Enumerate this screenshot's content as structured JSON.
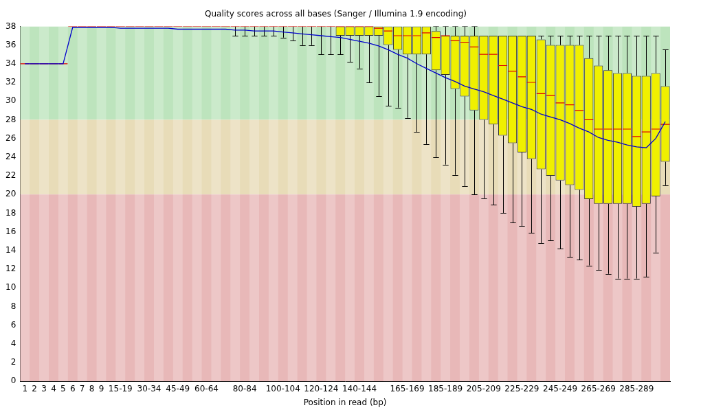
{
  "chart_data": {
    "type": "boxplot",
    "title": "Quality scores across all bases (Sanger / Illumina 1.9 encoding)",
    "x_label": "Position in read (bp)",
    "categories": [
      "1",
      "2",
      "3",
      "4",
      "5",
      "6",
      "7",
      "8",
      "9",
      null,
      "15-19",
      null,
      null,
      "30-34",
      null,
      null,
      "45-49",
      null,
      null,
      "60-64",
      null,
      null,
      null,
      "80-84",
      null,
      null,
      null,
      "100-104",
      null,
      null,
      null,
      "120-124",
      null,
      null,
      null,
      "140-144",
      null,
      null,
      null,
      null,
      "165-169",
      null,
      null,
      null,
      "185-189",
      null,
      null,
      null,
      "205-209",
      null,
      null,
      null,
      "225-229",
      null,
      null,
      null,
      "245-249",
      null,
      null,
      null,
      "265-269",
      null,
      null,
      null,
      "285-289",
      null,
      null,
      null
    ],
    "ylim": [
      0,
      38
    ],
    "yticks": [
      0,
      2,
      4,
      6,
      8,
      10,
      12,
      14,
      16,
      18,
      20,
      22,
      24,
      26,
      28,
      30,
      32,
      34,
      36,
      38
    ],
    "grid": false,
    "bands": [
      {
        "from": 28,
        "to": 38,
        "color": "#bde4bd"
      },
      {
        "from": 20,
        "to": 28,
        "color": "#e8dcb8"
      },
      {
        "from": 0,
        "to": 20,
        "color": "#e8b8b8"
      }
    ],
    "series": [
      {
        "type": "box",
        "color": "#f0f000",
        "whisker_low": [
          34,
          34,
          34,
          34,
          34,
          38,
          38,
          38,
          38,
          38,
          38,
          38,
          38,
          38,
          38,
          38,
          38,
          38,
          38,
          38,
          38,
          38,
          37,
          37,
          37,
          37,
          37,
          36.8,
          36.5,
          36,
          36,
          35,
          35,
          35,
          34.2,
          33.5,
          32,
          30.5,
          29.5,
          29.3,
          28.2,
          26.7,
          25.4,
          24,
          23.2,
          22.1,
          20.9,
          20,
          19.6,
          18.9,
          18,
          17,
          16.6,
          15.9,
          14.8,
          15.1,
          14.2,
          13.3,
          13,
          12.4,
          11.9,
          11.5,
          11,
          11,
          11,
          11.2,
          13.8,
          21
        ],
        "q1": [
          34,
          34,
          34,
          34,
          34,
          38,
          38,
          38,
          38,
          38,
          38,
          38,
          38,
          38,
          38,
          38,
          38,
          38,
          38,
          38,
          38,
          38,
          38,
          38,
          38,
          38,
          38,
          38,
          38,
          38,
          38,
          38,
          38,
          37,
          37,
          37,
          37,
          37,
          36,
          35.5,
          35,
          35,
          35,
          33.3,
          32.8,
          31.3,
          30.5,
          29,
          28,
          27.5,
          26.3,
          25.5,
          24.5,
          23.8,
          22.7,
          22,
          21.5,
          21,
          20.5,
          19.5,
          19,
          19,
          19,
          19,
          18.7,
          19,
          19.8,
          23.5
        ],
        "q3": [
          34,
          34,
          34,
          34,
          34,
          38,
          38,
          38,
          38,
          38,
          38,
          38,
          38,
          38,
          38,
          38,
          38,
          38,
          38,
          38,
          38,
          38,
          38,
          38,
          38,
          38,
          38,
          38,
          38,
          38,
          38,
          38,
          38,
          38,
          38,
          38,
          38,
          38,
          38,
          38,
          38,
          38,
          38,
          37.5,
          37,
          37,
          37,
          37,
          37,
          37,
          37,
          37,
          37,
          37,
          36.6,
          36,
          36,
          36,
          36,
          34.6,
          33.8,
          33.3,
          33,
          33,
          32.7,
          32.7,
          33,
          31.6
        ],
        "whisker_high": [
          34,
          34,
          34,
          34,
          34,
          38,
          38,
          38,
          38,
          38,
          38,
          38,
          38,
          38,
          38,
          38,
          38,
          38,
          38,
          38,
          38,
          38,
          38,
          38,
          38,
          38,
          38,
          38,
          38,
          38,
          38,
          38,
          38,
          38,
          38,
          38,
          38,
          38,
          38,
          38,
          38,
          38,
          38,
          38,
          38,
          38,
          38,
          38,
          37,
          37,
          37,
          37,
          37,
          37,
          37,
          37,
          37,
          37,
          37,
          37,
          37,
          37,
          37,
          37,
          37,
          37,
          37,
          35.5
        ]
      },
      {
        "type": "median",
        "color": "#dd0000",
        "marker": "dash",
        "values": [
          34,
          34,
          34,
          34,
          34,
          38,
          38,
          38,
          38,
          38,
          38,
          38,
          38,
          38,
          38,
          38,
          38,
          38,
          38,
          38,
          38,
          38,
          38,
          38,
          38,
          38,
          38,
          38,
          38,
          38,
          38,
          38,
          38,
          38,
          38,
          38,
          38,
          37.8,
          37.5,
          37,
          37,
          37,
          37.3,
          36.8,
          37,
          36.5,
          36.3,
          35.8,
          35,
          35,
          33.8,
          33.2,
          32.6,
          32,
          30.8,
          30.6,
          29.8,
          29.6,
          29,
          28,
          27,
          27,
          27,
          27,
          26.2,
          26.7,
          27,
          27.5
        ]
      },
      {
        "type": "line",
        "color": "#0000cc",
        "line_style": "solid",
        "values": [
          34,
          34,
          34,
          34,
          34,
          37.9,
          37.9,
          37.9,
          37.9,
          37.9,
          37.8,
          37.8,
          37.8,
          37.8,
          37.8,
          37.8,
          37.7,
          37.7,
          37.7,
          37.7,
          37.7,
          37.7,
          37.6,
          37.6,
          37.5,
          37.5,
          37.5,
          37.4,
          37.3,
          37.2,
          37.1,
          37,
          36.9,
          36.8,
          36.6,
          36.4,
          36.2,
          35.9,
          35.5,
          35,
          34.6,
          34,
          33.5,
          33,
          32.5,
          32.1,
          31.6,
          31.3,
          31,
          30.6,
          30.2,
          29.8,
          29.4,
          29.1,
          28.6,
          28.3,
          28,
          27.6,
          27.1,
          26.7,
          26.1,
          25.8,
          25.6,
          25.3,
          25.1,
          25,
          26,
          27.8
        ]
      }
    ]
  }
}
